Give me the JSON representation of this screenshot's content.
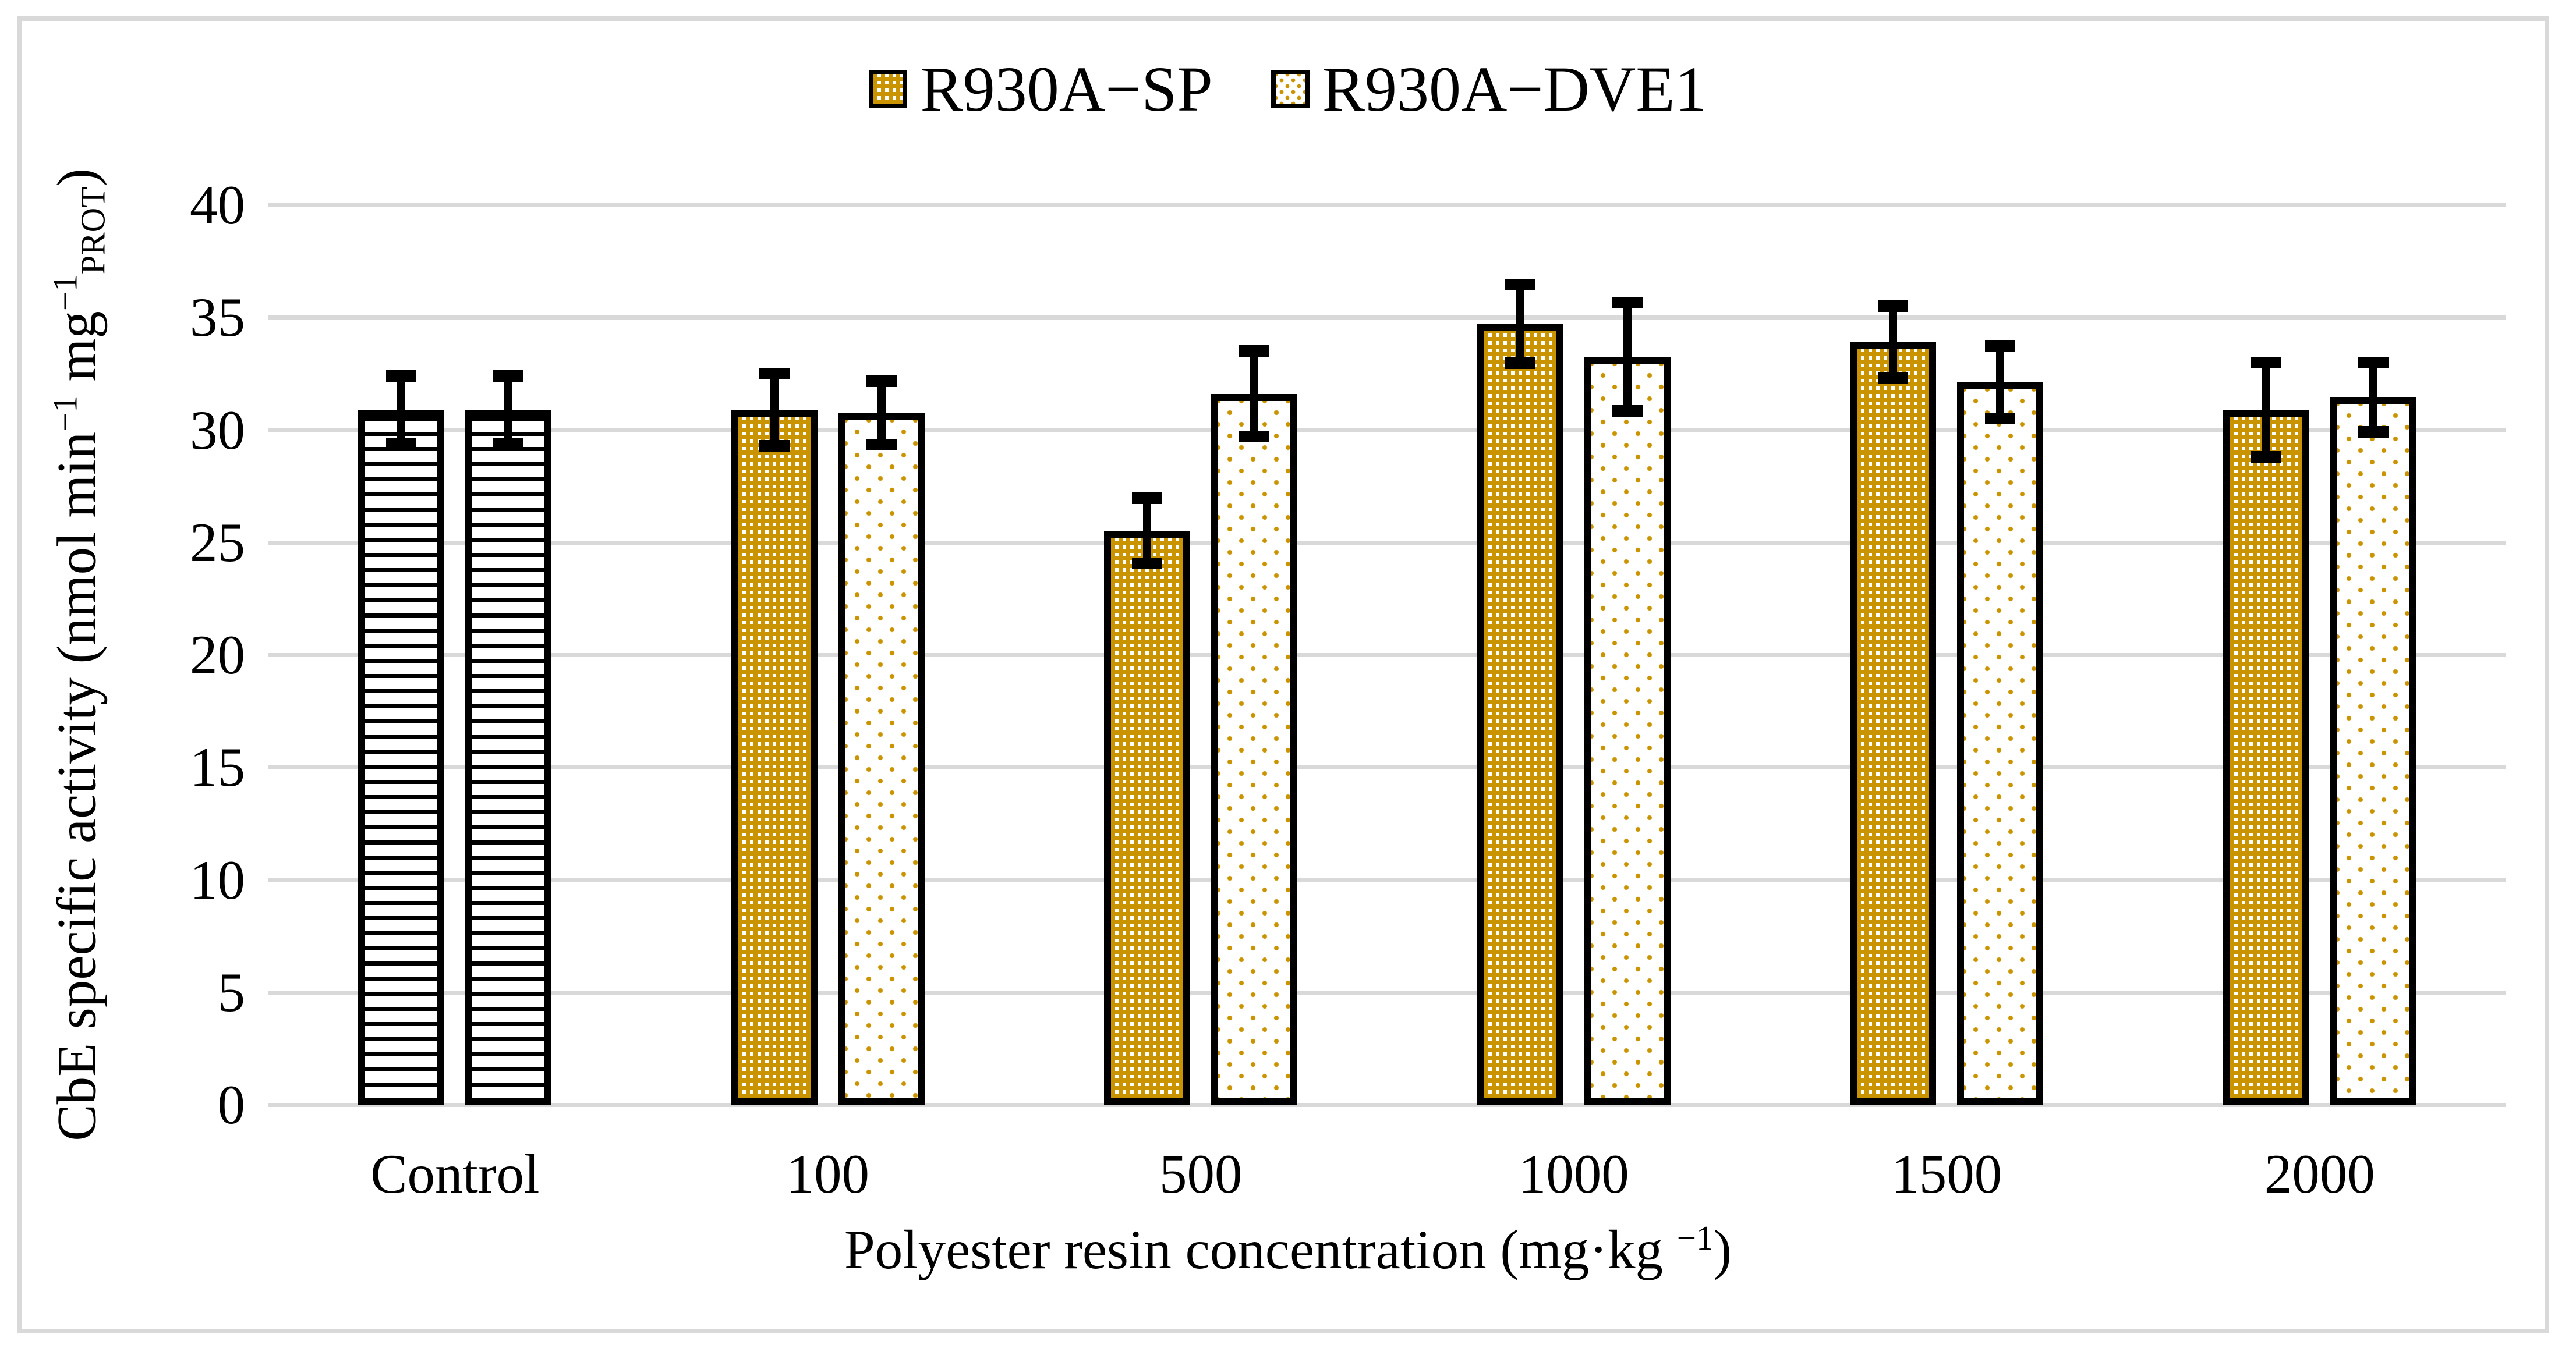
{
  "legend": {
    "items": [
      {
        "label": "R930A−SP",
        "pattern": "sp"
      },
      {
        "label": "R930A−DVE1",
        "pattern": "dve1"
      }
    ]
  },
  "y_axis": {
    "title": {
      "pre": "CbE specific activity (nmol min",
      "sup1": "−1",
      "mid": " mg",
      "sup2": "−1",
      "sub": "PROT",
      "post": ")"
    }
  },
  "x_axis": {
    "title": {
      "pre": "Polyester resin concentration (mg·kg ",
      "sup": "−1",
      "post": ")"
    }
  },
  "colors": {
    "bar_gold": "#C99400",
    "gridline": "#D9D9D9",
    "frame_border": "#D9D9D9",
    "ink": "#000000"
  },
  "chart_data": {
    "type": "bar",
    "title": "",
    "categories": [
      "Control",
      "100",
      "500",
      "1000",
      "1500",
      "2000"
    ],
    "series": [
      {
        "name": "R930A−SP",
        "pattern": "sp",
        "color": "#C99400",
        "values": [
          30.9,
          30.9,
          25.5,
          34.7,
          33.9,
          30.9
        ],
        "errors": [
          1.5,
          1.6,
          1.45,
          1.75,
          1.6,
          2.1
        ]
      },
      {
        "name": "R930A−DVE1",
        "pattern": "dve1",
        "color": "#C99400",
        "values": [
          30.9,
          30.75,
          31.6,
          33.25,
          32.1,
          31.45
        ],
        "errors": [
          1.5,
          1.4,
          1.9,
          2.4,
          1.6,
          1.55
        ]
      }
    ],
    "control_pattern_override": "horizontal-stripes-black",
    "error_bars": true,
    "xlabel": "Polyester resin concentration (mg·kg −1)",
    "ylabel": "CbE specific activity (nmol min−1 mg−1 PROT)",
    "ylim": [
      0,
      40
    ],
    "ytick_step": 5,
    "ytick_labels": [
      "0",
      "5",
      "10",
      "15",
      "20",
      "25",
      "30",
      "35",
      "40"
    ],
    "grid": "horizontal",
    "legend_position": "top-center"
  }
}
